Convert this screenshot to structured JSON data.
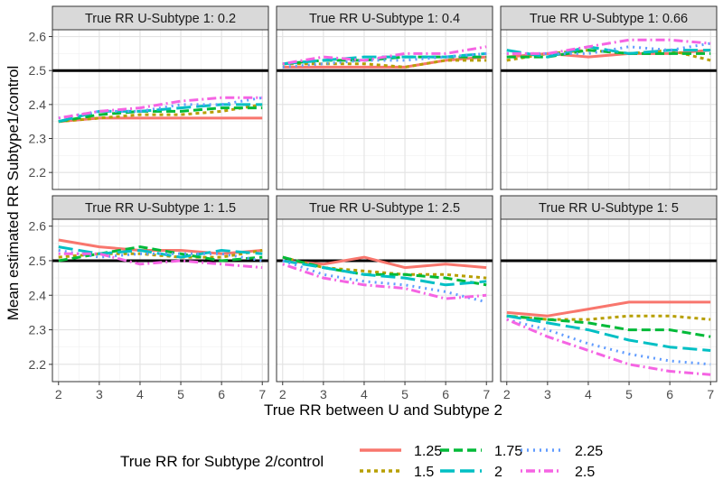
{
  "chart_data": {
    "type": "line",
    "xlabel": "True RR between U and Subtype 2",
    "ylabel": "Mean estimated RR Subtype1/control",
    "x": [
      2,
      3,
      4,
      5,
      6,
      7
    ],
    "x_ticks": [
      "2",
      "3",
      "4",
      "5",
      "6",
      "7"
    ],
    "y_ticks": [
      "2.2",
      "2.3",
      "2.4",
      "2.5",
      "2.6"
    ],
    "ylim": [
      2.15,
      2.62
    ],
    "xlim": [
      1.85,
      7.15
    ],
    "grid": true,
    "reference_line_y": 2.5,
    "legend": {
      "title": "True RR for Subtype 2/control",
      "position": "bottom",
      "entries": [
        {
          "label": "1.25",
          "color": "#F8766D",
          "dash": "solid"
        },
        {
          "label": "1.5",
          "color": "#B79F00",
          "dash": "dotted"
        },
        {
          "label": "1.75",
          "color": "#00BA38",
          "dash": "dashed"
        },
        {
          "label": "2",
          "color": "#00BFC4",
          "dash": "longdash"
        },
        {
          "label": "2.25",
          "color": "#619CFF",
          "dash": "dots"
        },
        {
          "label": "2.5",
          "color": "#F564E3",
          "dash": "dotdash"
        }
      ]
    },
    "panels": [
      {
        "title": "True RR U-Subtype 1: 0.2",
        "series": [
          {
            "name": "1.25",
            "values": [
              2.35,
              2.36,
              2.36,
              2.36,
              2.36,
              2.36
            ]
          },
          {
            "name": "1.5",
            "values": [
              2.35,
              2.36,
              2.37,
              2.37,
              2.38,
              2.4
            ]
          },
          {
            "name": "1.75",
            "values": [
              2.35,
              2.37,
              2.38,
              2.38,
              2.39,
              2.39
            ]
          },
          {
            "name": "2",
            "values": [
              2.35,
              2.38,
              2.38,
              2.39,
              2.4,
              2.4
            ]
          },
          {
            "name": "2.25",
            "values": [
              2.36,
              2.38,
              2.38,
              2.4,
              2.4,
              2.42
            ]
          },
          {
            "name": "2.5",
            "values": [
              2.36,
              2.38,
              2.39,
              2.41,
              2.42,
              2.42
            ]
          }
        ]
      },
      {
        "title": "True RR U-Subtype 1: 0.4",
        "series": [
          {
            "name": "1.25",
            "values": [
              2.51,
              2.51,
              2.51,
              2.51,
              2.53,
              2.54
            ]
          },
          {
            "name": "1.5",
            "values": [
              2.52,
              2.52,
              2.52,
              2.51,
              2.53,
              2.53
            ]
          },
          {
            "name": "1.75",
            "values": [
              2.52,
              2.53,
              2.53,
              2.54,
              2.54,
              2.54
            ]
          },
          {
            "name": "2",
            "values": [
              2.52,
              2.53,
              2.54,
              2.54,
              2.54,
              2.55
            ]
          },
          {
            "name": "2.25",
            "values": [
              2.51,
              2.52,
              2.53,
              2.53,
              2.54,
              2.55
            ]
          },
          {
            "name": "2.5",
            "values": [
              2.52,
              2.54,
              2.53,
              2.55,
              2.55,
              2.57
            ]
          }
        ]
      },
      {
        "title": "True RR U-Subtype 1: 0.66",
        "series": [
          {
            "name": "1.25",
            "values": [
              2.54,
              2.55,
              2.54,
              2.55,
              2.55,
              2.56
            ]
          },
          {
            "name": "1.5",
            "values": [
              2.53,
              2.55,
              2.56,
              2.55,
              2.56,
              2.53
            ]
          },
          {
            "name": "1.75",
            "values": [
              2.54,
              2.54,
              2.56,
              2.55,
              2.55,
              2.55
            ]
          },
          {
            "name": "2",
            "values": [
              2.56,
              2.54,
              2.57,
              2.55,
              2.56,
              2.56
            ]
          },
          {
            "name": "2.25",
            "values": [
              2.55,
              2.55,
              2.55,
              2.57,
              2.56,
              2.58
            ]
          },
          {
            "name": "2.5",
            "values": [
              2.55,
              2.55,
              2.57,
              2.59,
              2.59,
              2.58
            ]
          }
        ]
      },
      {
        "title": "True RR U-Subtype 1: 1.5",
        "series": [
          {
            "name": "1.25",
            "values": [
              2.56,
              2.54,
              2.53,
              2.53,
              2.52,
              2.53
            ]
          },
          {
            "name": "1.5",
            "values": [
              2.51,
              2.52,
              2.52,
              2.51,
              2.51,
              2.53
            ]
          },
          {
            "name": "1.75",
            "values": [
              2.5,
              2.52,
              2.54,
              2.52,
              2.5,
              2.51
            ]
          },
          {
            "name": "2",
            "values": [
              2.54,
              2.52,
              2.53,
              2.51,
              2.53,
              2.52
            ]
          },
          {
            "name": "2.25",
            "values": [
              2.53,
              2.51,
              2.52,
              2.52,
              2.52,
              2.5
            ]
          },
          {
            "name": "2.5",
            "values": [
              2.52,
              2.52,
              2.49,
              2.5,
              2.49,
              2.48
            ]
          }
        ]
      },
      {
        "title": "True RR U-Subtype 1: 2.5",
        "series": [
          {
            "name": "1.25",
            "values": [
              2.5,
              2.49,
              2.51,
              2.48,
              2.49,
              2.48
            ]
          },
          {
            "name": "1.5",
            "values": [
              2.51,
              2.48,
              2.47,
              2.46,
              2.46,
              2.45
            ]
          },
          {
            "name": "1.75",
            "values": [
              2.51,
              2.48,
              2.46,
              2.46,
              2.45,
              2.43
            ]
          },
          {
            "name": "2",
            "values": [
              2.5,
              2.48,
              2.46,
              2.45,
              2.43,
              2.44
            ]
          },
          {
            "name": "2.25",
            "values": [
              2.5,
              2.46,
              2.44,
              2.43,
              2.41,
              2.38
            ]
          },
          {
            "name": "2.5",
            "values": [
              2.49,
              2.45,
              2.43,
              2.42,
              2.39,
              2.4
            ]
          }
        ]
      },
      {
        "title": "True RR U-Subtype 1: 5",
        "series": [
          {
            "name": "1.25",
            "values": [
              2.35,
              2.34,
              2.36,
              2.38,
              2.38,
              2.38
            ]
          },
          {
            "name": "1.5",
            "values": [
              2.34,
              2.33,
              2.33,
              2.34,
              2.34,
              2.33
            ]
          },
          {
            "name": "1.75",
            "values": [
              2.34,
              2.33,
              2.32,
              2.3,
              2.3,
              2.28
            ]
          },
          {
            "name": "2",
            "values": [
              2.34,
              2.32,
              2.3,
              2.27,
              2.25,
              2.24
            ]
          },
          {
            "name": "2.25",
            "values": [
              2.33,
              2.3,
              2.26,
              2.23,
              2.21,
              2.2
            ]
          },
          {
            "name": "2.5",
            "values": [
              2.33,
              2.28,
              2.24,
              2.2,
              2.18,
              2.17
            ]
          }
        ]
      }
    ]
  }
}
